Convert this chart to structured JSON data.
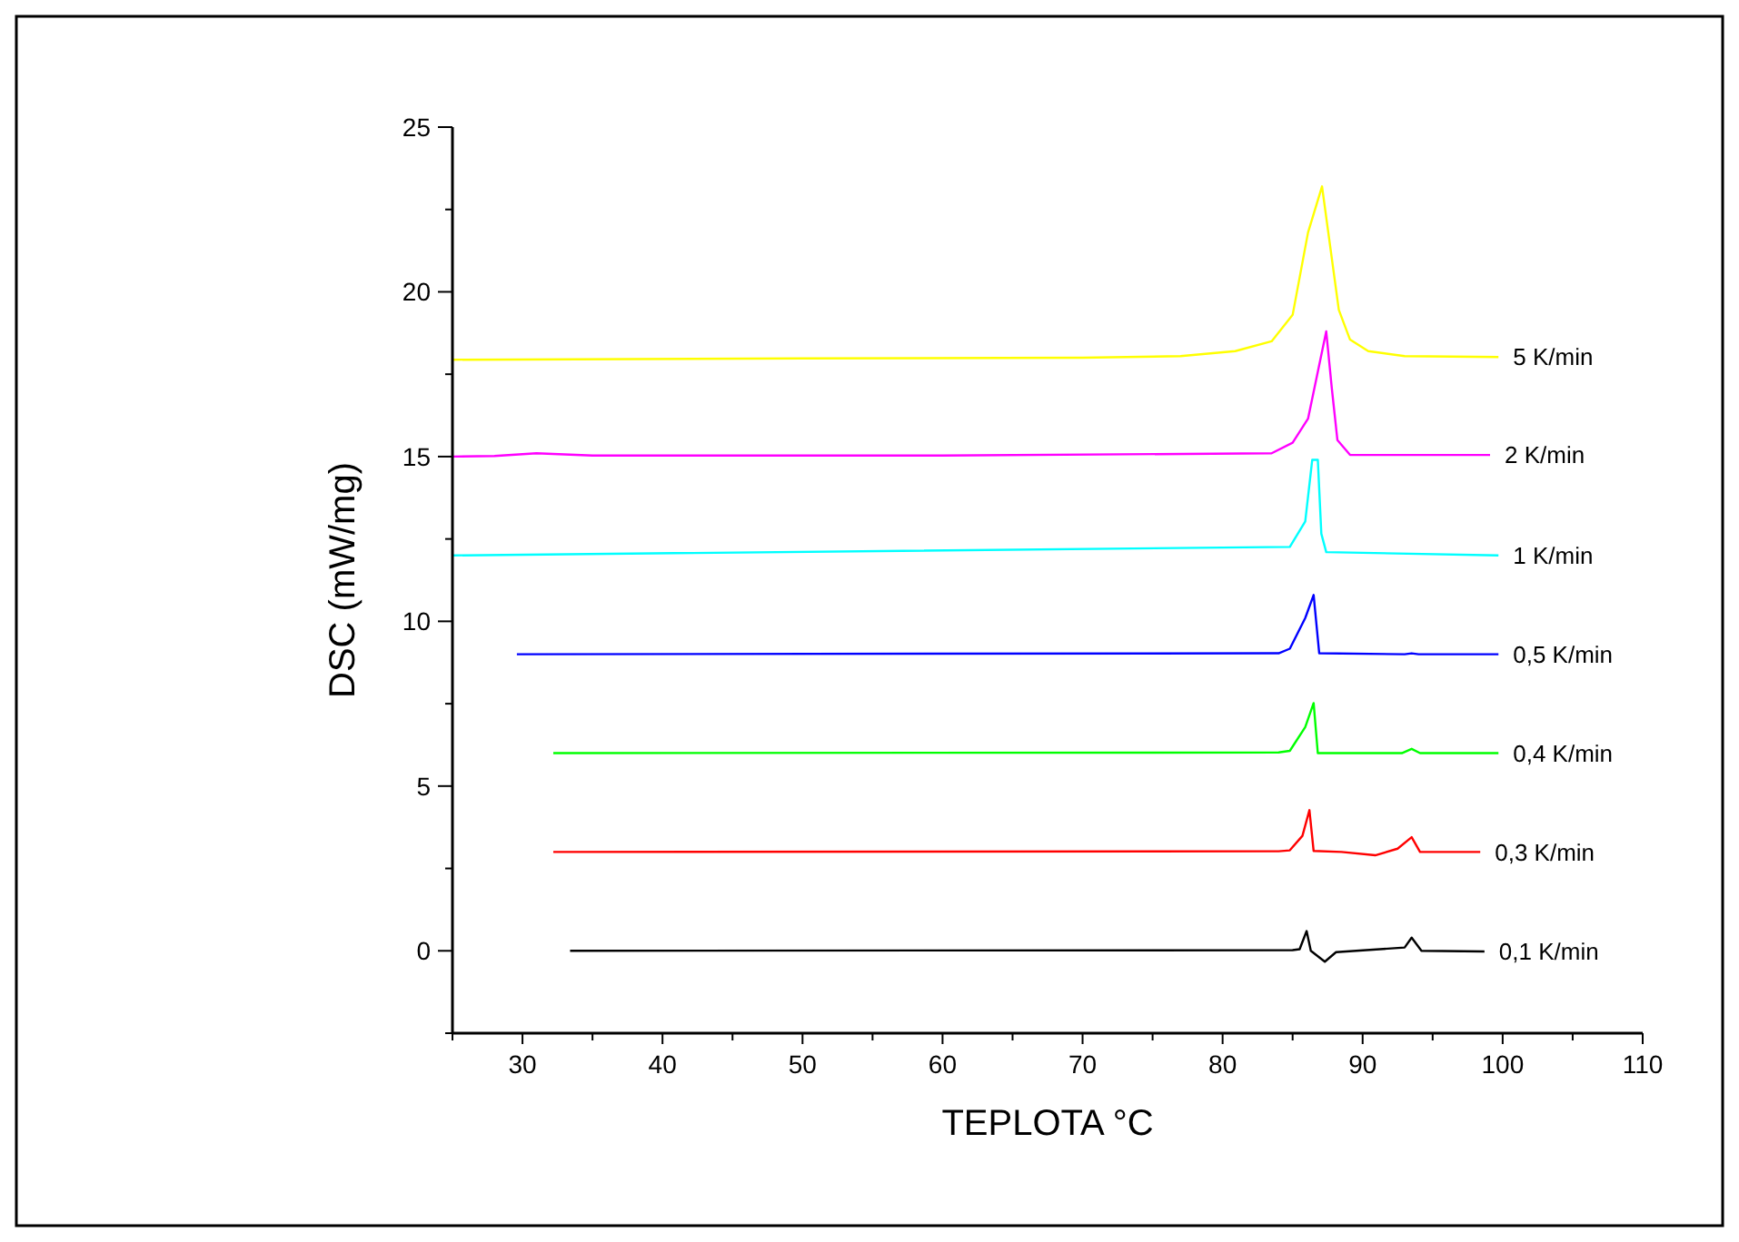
{
  "chart_data": {
    "type": "line",
    "xlabel": "TEPLOTA °C",
    "ylabel": "DSC (mW/mg)",
    "xlim": [
      25,
      110
    ],
    "xticks": [
      {
        "value": 25,
        "label": null
      },
      30,
      {
        "value": 35,
        "label": null
      },
      40,
      {
        "value": 45,
        "label": null
      },
      50,
      {
        "value": 55,
        "label": null
      },
      60,
      {
        "value": 65,
        "label": null
      },
      70,
      {
        "value": 75,
        "label": null
      },
      80,
      {
        "value": 85,
        "label": null
      },
      90,
      {
        "value": 95,
        "label": null
      },
      100,
      {
        "value": 105,
        "label": null
      },
      110
    ],
    "ylim": [
      -2.5,
      25
    ],
    "yticks": [
      {
        "value": -2.5,
        "label": null
      },
      0,
      {
        "value": 2.5,
        "label": null
      },
      5,
      {
        "value": 7.5,
        "label": null
      },
      10,
      {
        "value": 12.5,
        "label": null
      },
      15,
      {
        "value": 17.5,
        "label": null
      },
      20,
      {
        "value": 22.5,
        "label": null
      },
      25
    ],
    "grid": false,
    "marker": "none",
    "line_style": "solid",
    "series": [
      {
        "name": "5 K/min",
        "color": "#ffff00",
        "x": [
          25,
          50,
          70,
          77,
          80.9,
          83.5,
          85,
          86.1,
          87.1,
          88.3,
          89.1,
          90.4,
          93,
          99.7
        ],
        "values": [
          17.94,
          17.98,
          18.0,
          18.05,
          18.2,
          18.5,
          19.3,
          21.8,
          23.2,
          19.45,
          18.55,
          18.2,
          18.05,
          18.02
        ]
      },
      {
        "name": "2 K/min",
        "color": "#ff00ff",
        "x": [
          25,
          28,
          31,
          35,
          60,
          83.5,
          85,
          86.1,
          87.4,
          87.8,
          88.2,
          89.1,
          99.1
        ],
        "values": [
          15.0,
          15.02,
          15.1,
          15.03,
          15.03,
          15.1,
          15.42,
          16.15,
          18.8,
          17.07,
          15.5,
          15.05,
          15.05
        ]
      },
      {
        "name": "1 K/min",
        "color": "#00ffff",
        "x": [
          25,
          84.8,
          85.9,
          86.4,
          86.8,
          87.05,
          87.4,
          99.7
        ],
        "values": [
          12.0,
          12.26,
          13.03,
          14.9,
          14.9,
          12.66,
          12.1,
          12.0
        ]
      },
      {
        "name": "0,5 K/min",
        "color": "#0000ff",
        "x": [
          29.6,
          84,
          84.8,
          85.9,
          86.5,
          86.9,
          93,
          93.5,
          94,
          99.7
        ],
        "values": [
          9.0,
          9.03,
          9.17,
          10.1,
          10.8,
          9.03,
          9.0,
          9.03,
          9.0,
          9.0
        ]
      },
      {
        "name": "0,4 K/min",
        "color": "#00ff00",
        "x": [
          32.2,
          84,
          84.8,
          85.9,
          86.5,
          86.8,
          92.8,
          93.5,
          94.1,
          99.7
        ],
        "values": [
          6.0,
          6.02,
          6.07,
          6.79,
          7.52,
          6.0,
          6.0,
          6.13,
          6.0,
          6.0
        ]
      },
      {
        "name": "0,3 K/min",
        "color": "#ff0000",
        "x": [
          32.2,
          84,
          84.8,
          85.7,
          86.2,
          86.5,
          88.5,
          90.9,
          92.5,
          93.5,
          94.1,
          98.4
        ],
        "values": [
          3.0,
          3.02,
          3.05,
          3.49,
          4.27,
          3.03,
          3.0,
          2.9,
          3.1,
          3.45,
          3.0,
          3.0
        ]
      },
      {
        "name": "0,1 K/min",
        "color": "#000000",
        "x": [
          33.4,
          85,
          85.5,
          86.0,
          86.3,
          87.3,
          88.1,
          93.0,
          93.5,
          94.2,
          98.7
        ],
        "values": [
          0.0,
          0.02,
          0.05,
          0.6,
          0.0,
          -0.33,
          -0.04,
          0.1,
          0.4,
          0.0,
          -0.02
        ]
      }
    ]
  }
}
